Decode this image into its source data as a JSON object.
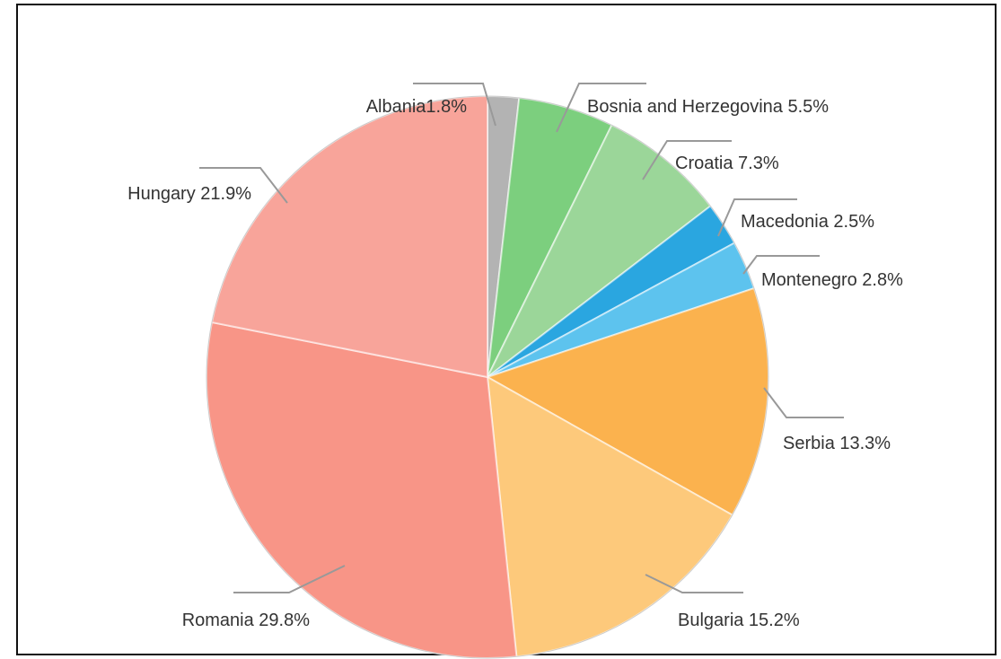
{
  "chart_data": {
    "type": "pie",
    "title": "",
    "slices": [
      {
        "label": "Albania1.8%",
        "value": 1.8,
        "color": "#b3b3b3"
      },
      {
        "label": "Bosnia and Herzegovina 5.5%",
        "value": 5.5,
        "color": "#7ccf7e"
      },
      {
        "label": "Croatia 7.3%",
        "value": 7.3,
        "color": "#9bd699"
      },
      {
        "label": "Macedonia 2.5%",
        "value": 2.5,
        "color": "#2aa6e0"
      },
      {
        "label": "Montenegro 2.8%",
        "value": 2.8,
        "color": "#5dc3ee"
      },
      {
        "label": "Serbia 13.3%",
        "value": 13.3,
        "color": "#fbb24e"
      },
      {
        "label": "Bulgaria 15.2%",
        "value": 15.2,
        "color": "#fdc97b"
      },
      {
        "label": "Romania 29.8%",
        "value": 29.8,
        "color": "#f89587"
      },
      {
        "label": "Hungary 21.9%",
        "value": 21.9,
        "color": "#f8a49a"
      }
    ],
    "start_angle": "12 o'clock",
    "direction": "clockwise",
    "legend": "none"
  }
}
